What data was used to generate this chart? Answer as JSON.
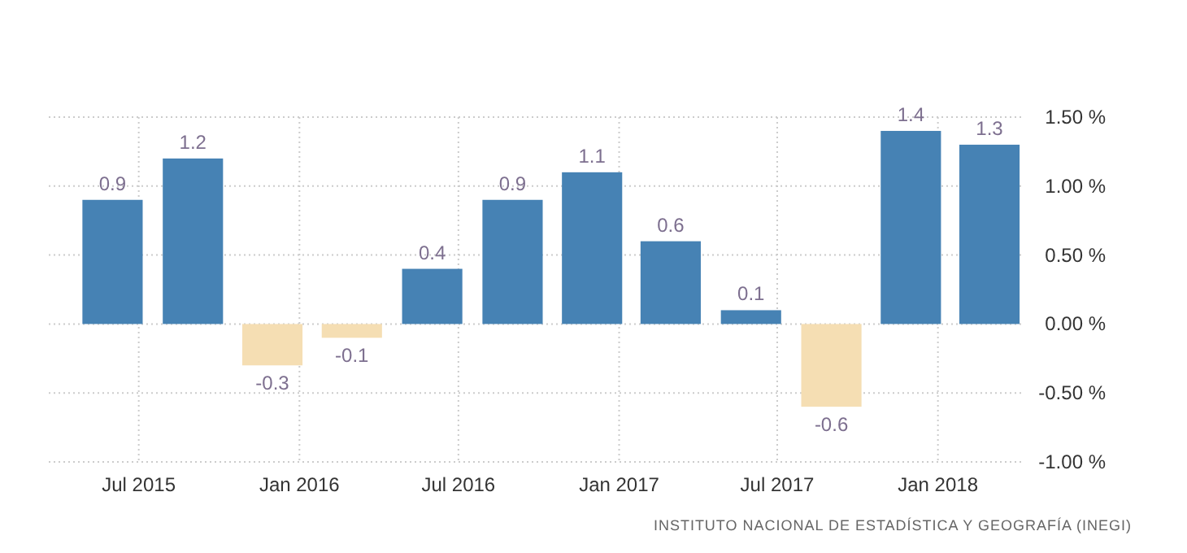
{
  "chart_data": {
    "type": "bar",
    "x": [
      "2015-06",
      "2015-09",
      "2015-12",
      "2016-03",
      "2016-06",
      "2016-09",
      "2016-12",
      "2017-03",
      "2017-06",
      "2017-09",
      "2017-12",
      "2018-03"
    ],
    "values": [
      0.9,
      1.2,
      -0.3,
      -0.1,
      0.4,
      0.9,
      1.1,
      0.6,
      0.1,
      -0.6,
      1.4,
      1.3
    ],
    "colors": [
      "#4682b4",
      "#4682b4",
      "#f5deb3",
      "#f5deb3",
      "#4682b4",
      "#4682b4",
      "#4682b4",
      "#4682b4",
      "#4682b4",
      "#f5deb3",
      "#4682b4",
      "#4682b4"
    ],
    "data_labels": true,
    "xlim": [
      "2015-03-20",
      "2018-04-10"
    ],
    "xticks": [
      {
        "value": "2015-07",
        "label": "Jul 2015"
      },
      {
        "value": "2016-01",
        "label": "Jan 2016"
      },
      {
        "value": "2016-07",
        "label": "Jul 2016"
      },
      {
        "value": "2017-01",
        "label": "Jan 2017"
      },
      {
        "value": "2017-07",
        "label": "Jul 2017"
      },
      {
        "value": "2018-01",
        "label": "Jan 2018"
      }
    ],
    "ylim": [
      -1.0,
      1.5
    ],
    "yticks": [
      {
        "value": 1.5,
        "label": "1.50 %"
      },
      {
        "value": 1.0,
        "label": "1.00 %"
      },
      {
        "value": 0.5,
        "label": "0.50 %"
      },
      {
        "value": 0,
        "label": "0.00 %"
      },
      {
        "value": -0.5,
        "label": "-0.50 %"
      },
      {
        "value": -1.0,
        "label": "-1.00 %"
      }
    ],
    "grid": true,
    "annotations": [
      "INSTITUTO NACIONAL DE ESTADÍSTICA Y GEOGRAFÍA (INEGI)"
    ]
  }
}
